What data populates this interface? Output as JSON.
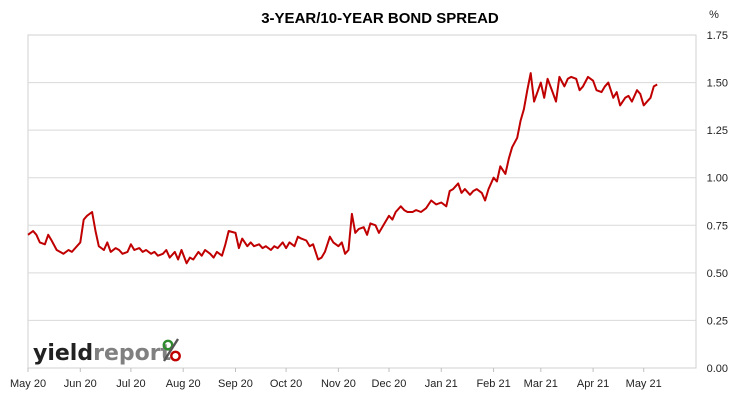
{
  "chart_data": {
    "type": "line",
    "title": "3-YEAR/10-YEAR BOND SPREAD",
    "ylabel": "%",
    "ylim": [
      0,
      1.75
    ],
    "yticks": [
      "0.00",
      "0.25",
      "0.50",
      "0.75",
      "1.00",
      "1.25",
      "1.50",
      "1.75"
    ],
    "xticks": [
      "May 20",
      "Jun 20",
      "Jul 20",
      "Aug 20",
      "Sep 20",
      "Oct 20",
      "Nov 20",
      "Dec 20",
      "Jan 21",
      "Feb 21",
      "Mar 21",
      "Apr 21",
      "May 21"
    ],
    "grid": "horizontal",
    "line_color": "#c00000",
    "series": [
      {
        "points": [
          [
            "2020-05-01",
            0.7
          ],
          [
            "2020-05-04",
            0.72
          ],
          [
            "2020-05-06",
            0.7
          ],
          [
            "2020-05-08",
            0.66
          ],
          [
            "2020-05-11",
            0.65
          ],
          [
            "2020-05-13",
            0.7
          ],
          [
            "2020-05-15",
            0.67
          ],
          [
            "2020-05-18",
            0.62
          ],
          [
            "2020-05-20",
            0.61
          ],
          [
            "2020-05-22",
            0.6
          ],
          [
            "2020-05-25",
            0.62
          ],
          [
            "2020-05-27",
            0.61
          ],
          [
            "2020-05-29",
            0.63
          ],
          [
            "2020-06-01",
            0.66
          ],
          [
            "2020-06-03",
            0.78
          ],
          [
            "2020-06-05",
            0.8
          ],
          [
            "2020-06-08",
            0.82
          ],
          [
            "2020-06-10",
            0.72
          ],
          [
            "2020-06-12",
            0.64
          ],
          [
            "2020-06-15",
            0.62
          ],
          [
            "2020-06-17",
            0.66
          ],
          [
            "2020-06-19",
            0.61
          ],
          [
            "2020-06-22",
            0.63
          ],
          [
            "2020-06-24",
            0.62
          ],
          [
            "2020-06-26",
            0.6
          ],
          [
            "2020-06-29",
            0.61
          ],
          [
            "2020-07-01",
            0.65
          ],
          [
            "2020-07-03",
            0.62
          ],
          [
            "2020-07-06",
            0.63
          ],
          [
            "2020-07-08",
            0.61
          ],
          [
            "2020-07-10",
            0.62
          ],
          [
            "2020-07-13",
            0.6
          ],
          [
            "2020-07-15",
            0.61
          ],
          [
            "2020-07-17",
            0.59
          ],
          [
            "2020-07-20",
            0.6
          ],
          [
            "2020-07-22",
            0.62
          ],
          [
            "2020-07-24",
            0.58
          ],
          [
            "2020-07-27",
            0.61
          ],
          [
            "2020-07-29",
            0.57
          ],
          [
            "2020-07-31",
            0.62
          ],
          [
            "2020-08-03",
            0.55
          ],
          [
            "2020-08-05",
            0.58
          ],
          [
            "2020-08-07",
            0.57
          ],
          [
            "2020-08-10",
            0.61
          ],
          [
            "2020-08-12",
            0.59
          ],
          [
            "2020-08-14",
            0.62
          ],
          [
            "2020-08-17",
            0.6
          ],
          [
            "2020-08-19",
            0.58
          ],
          [
            "2020-08-21",
            0.61
          ],
          [
            "2020-08-24",
            0.59
          ],
          [
            "2020-08-26",
            0.65
          ],
          [
            "2020-08-28",
            0.72
          ],
          [
            "2020-09-01",
            0.71
          ],
          [
            "2020-09-03",
            0.63
          ],
          [
            "2020-09-05",
            0.68
          ],
          [
            "2020-09-08",
            0.64
          ],
          [
            "2020-09-10",
            0.66
          ],
          [
            "2020-09-12",
            0.64
          ],
          [
            "2020-09-15",
            0.65
          ],
          [
            "2020-09-17",
            0.63
          ],
          [
            "2020-09-19",
            0.64
          ],
          [
            "2020-09-22",
            0.62
          ],
          [
            "2020-09-24",
            0.64
          ],
          [
            "2020-09-26",
            0.63
          ],
          [
            "2020-09-29",
            0.66
          ],
          [
            "2020-10-01",
            0.63
          ],
          [
            "2020-10-03",
            0.66
          ],
          [
            "2020-10-06",
            0.64
          ],
          [
            "2020-10-08",
            0.69
          ],
          [
            "2020-10-10",
            0.68
          ],
          [
            "2020-10-13",
            0.67
          ],
          [
            "2020-10-15",
            0.64
          ],
          [
            "2020-10-17",
            0.65
          ],
          [
            "2020-10-20",
            0.57
          ],
          [
            "2020-10-22",
            0.58
          ],
          [
            "2020-10-24",
            0.61
          ],
          [
            "2020-10-27",
            0.69
          ],
          [
            "2020-10-29",
            0.66
          ],
          [
            "2020-11-01",
            0.64
          ],
          [
            "2020-11-03",
            0.66
          ],
          [
            "2020-11-05",
            0.6
          ],
          [
            "2020-11-07",
            0.62
          ],
          [
            "2020-11-09",
            0.81
          ],
          [
            "2020-11-11",
            0.71
          ],
          [
            "2020-11-13",
            0.73
          ],
          [
            "2020-11-16",
            0.74
          ],
          [
            "2020-11-18",
            0.7
          ],
          [
            "2020-11-20",
            0.76
          ],
          [
            "2020-11-23",
            0.75
          ],
          [
            "2020-11-25",
            0.71
          ],
          [
            "2020-11-27",
            0.74
          ],
          [
            "2020-12-01",
            0.8
          ],
          [
            "2020-12-03",
            0.78
          ],
          [
            "2020-12-05",
            0.82
          ],
          [
            "2020-12-08",
            0.85
          ],
          [
            "2020-12-10",
            0.83
          ],
          [
            "2020-12-12",
            0.82
          ],
          [
            "2020-12-15",
            0.82
          ],
          [
            "2020-12-17",
            0.83
          ],
          [
            "2020-12-20",
            0.82
          ],
          [
            "2020-12-23",
            0.84
          ],
          [
            "2020-12-26",
            0.88
          ],
          [
            "2020-12-29",
            0.86
          ],
          [
            "2021-01-01",
            0.87
          ],
          [
            "2021-01-04",
            0.85
          ],
          [
            "2021-01-06",
            0.93
          ],
          [
            "2021-01-08",
            0.94
          ],
          [
            "2021-01-11",
            0.97
          ],
          [
            "2021-01-13",
            0.92
          ],
          [
            "2021-01-15",
            0.94
          ],
          [
            "2021-01-18",
            0.91
          ],
          [
            "2021-01-20",
            0.93
          ],
          [
            "2021-01-22",
            0.94
          ],
          [
            "2021-01-25",
            0.92
          ],
          [
            "2021-01-27",
            0.88
          ],
          [
            "2021-01-29",
            0.94
          ],
          [
            "2021-02-01",
            1.0
          ],
          [
            "2021-02-03",
            0.98
          ],
          [
            "2021-02-05",
            1.06
          ],
          [
            "2021-02-08",
            1.02
          ],
          [
            "2021-02-10",
            1.1
          ],
          [
            "2021-02-12",
            1.16
          ],
          [
            "2021-02-15",
            1.21
          ],
          [
            "2021-02-17",
            1.3
          ],
          [
            "2021-02-19",
            1.36
          ],
          [
            "2021-02-21",
            1.46
          ],
          [
            "2021-02-23",
            1.55
          ],
          [
            "2021-02-25",
            1.4
          ],
          [
            "2021-03-01",
            1.5
          ],
          [
            "2021-03-03",
            1.42
          ],
          [
            "2021-03-05",
            1.52
          ],
          [
            "2021-03-08",
            1.45
          ],
          [
            "2021-03-10",
            1.4
          ],
          [
            "2021-03-12",
            1.53
          ],
          [
            "2021-03-15",
            1.48
          ],
          [
            "2021-03-17",
            1.52
          ],
          [
            "2021-03-19",
            1.53
          ],
          [
            "2021-03-22",
            1.52
          ],
          [
            "2021-03-24",
            1.46
          ],
          [
            "2021-03-26",
            1.48
          ],
          [
            "2021-03-29",
            1.53
          ],
          [
            "2021-04-01",
            1.51
          ],
          [
            "2021-04-03",
            1.46
          ],
          [
            "2021-04-06",
            1.45
          ],
          [
            "2021-04-08",
            1.48
          ],
          [
            "2021-04-10",
            1.5
          ],
          [
            "2021-04-13",
            1.42
          ],
          [
            "2021-04-15",
            1.45
          ],
          [
            "2021-04-17",
            1.38
          ],
          [
            "2021-04-20",
            1.42
          ],
          [
            "2021-04-22",
            1.43
          ],
          [
            "2021-04-24",
            1.4
          ],
          [
            "2021-04-27",
            1.46
          ],
          [
            "2021-04-29",
            1.44
          ],
          [
            "2021-05-01",
            1.38
          ],
          [
            "2021-05-03",
            1.4
          ],
          [
            "2021-05-05",
            1.42
          ],
          [
            "2021-05-07",
            1.48
          ],
          [
            "2021-05-09",
            1.49
          ]
        ]
      }
    ]
  },
  "logo": {
    "text_dark": "yield",
    "text_light": "report",
    "symbol": "%",
    "color_dark": "#222222",
    "color_light": "#808080",
    "color_top_dot": "#2e8b2e",
    "color_bottom_dot": "#c00000",
    "color_slash": "#555555"
  }
}
